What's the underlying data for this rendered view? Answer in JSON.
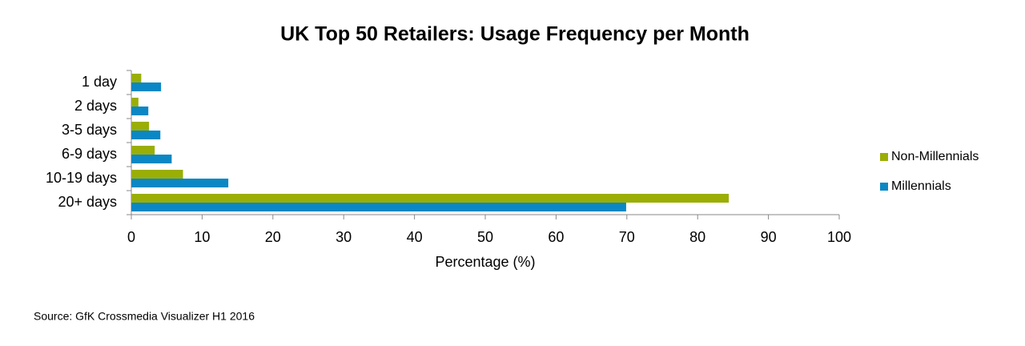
{
  "chart_data": {
    "type": "barh",
    "title": "UK Top 50 Retailers:  Usage Frequency per Month",
    "categories": [
      "1 day",
      "2 days",
      "3-5 days",
      "6-9 days",
      "10-19 days",
      "20+ days"
    ],
    "series": [
      {
        "name": "Non-Millennials",
        "color": "#9aae05",
        "values": [
          1.4,
          1.0,
          2.5,
          3.3,
          7.3,
          84.4
        ]
      },
      {
        "name": "Millennials",
        "color": "#0a87c4",
        "values": [
          4.2,
          2.4,
          4.1,
          5.7,
          13.7,
          69.9
        ]
      }
    ],
    "xlabel": "Percentage (%)",
    "xlim": [
      0,
      100
    ],
    "xticks": [
      0,
      10,
      20,
      30,
      40,
      50,
      60,
      70,
      80,
      90,
      100
    ],
    "legend": "right",
    "source": "Source: GfK Crossmedia Visualizer H1 2016"
  }
}
